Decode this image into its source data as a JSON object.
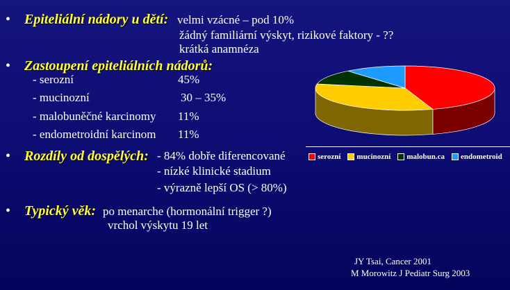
{
  "sections": [
    {
      "heading": "Epiteliální nádory u dětí:",
      "lines": [
        "velmi vzácné – pod 10%",
        "žádný familiární výskyt, rizikové faktory - ??",
        "krátká anamnéza"
      ]
    },
    {
      "heading": "Zastoupení epiteliálních nádorů:",
      "items": [
        {
          "label": "- serozní",
          "value": "45%"
        },
        {
          "label": "- mucinozní",
          "value": "30 – 35%"
        },
        {
          "label": "- malobuněčné karcinomy",
          "value": "11%"
        },
        {
          "label": "- endometroidní karcinom",
          "value": "11%"
        }
      ]
    },
    {
      "heading": "Rozdíly od dospělých:",
      "lines": [
        "- 84% dobře diferencované",
        "- nízké klinické stadium",
        "- výrazně lepší OS (> 80%)"
      ]
    },
    {
      "heading": "Typický věk:",
      "lines": [
        "po menarche (hormonální trigger ?)",
        "vrchol výskytu 19 let"
      ]
    }
  ],
  "bullet": "•",
  "references": [
    "JY Tsai, Cancer 2001",
    "M Morowitz J Pediatr Surg 2003"
  ],
  "chart_data": {
    "type": "pie",
    "style": "3d",
    "legend_position": "bottom",
    "categories": [
      "serozní",
      "mucinozní",
      "malobun.ca",
      "endometroid"
    ],
    "values": [
      45,
      33,
      11,
      11
    ],
    "colors": [
      "#ff0000",
      "#ffcc00",
      "#003300",
      "#1e9bff"
    ],
    "side_colors": [
      "#7a0000",
      "#806600",
      "#001a00",
      "#0e4d80"
    ]
  }
}
